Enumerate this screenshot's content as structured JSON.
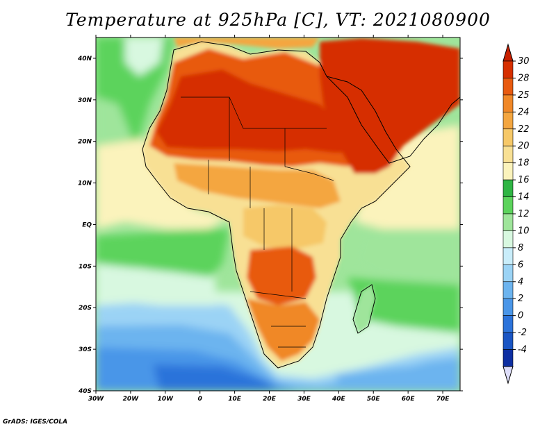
{
  "title": "Temperature at 925hPa [C], VT: 2021080900",
  "credit": "GrADS: IGES/COLA",
  "map": {
    "lon_range": [
      -30,
      75
    ],
    "lat_range": [
      -40,
      45
    ],
    "lon_ticks": [
      "30W",
      "20W",
      "10W",
      "0",
      "10E",
      "20E",
      "30E",
      "40E",
      "50E",
      "60E",
      "70E"
    ],
    "lat_ticks": [
      "40N",
      "30N",
      "20N",
      "10N",
      "EQ",
      "10S",
      "20S",
      "30S",
      "40S"
    ]
  },
  "colorbar": {
    "labels": [
      "30",
      "28",
      "25",
      "24",
      "22",
      "20",
      "18",
      "16",
      "14",
      "12",
      "10",
      "8",
      "6",
      "4",
      "2",
      "0",
      "-2",
      "-4"
    ],
    "colors": [
      "#d62f00",
      "#e85a10",
      "#f08828",
      "#f4a640",
      "#f6c868",
      "#f8e094",
      "#fbf3bc",
      "#2fb544",
      "#5cd35c",
      "#9fe59b",
      "#d8f8e0",
      "#c9edfa",
      "#9bd3f5",
      "#6cb4ef",
      "#4a96e8",
      "#2c73da",
      "#1a55c4",
      "#0e2fa2"
    ],
    "top_color": "#c82000",
    "bottom_color": "#dedefa"
  }
}
